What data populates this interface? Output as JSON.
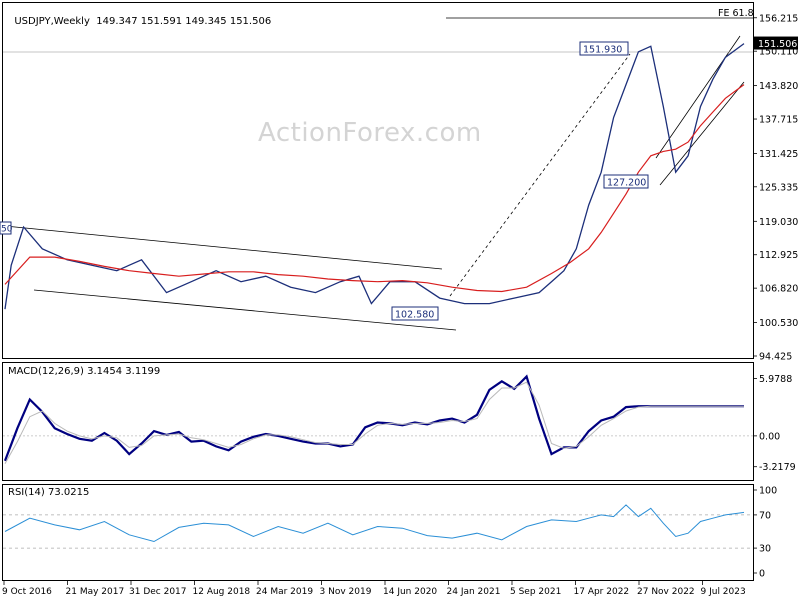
{
  "header": {
    "symbol": "USDJPY,Weekly",
    "ohlc": "149.347 151.591 149.345 151.506"
  },
  "watermark": "ActionForex.com",
  "macd_header": "MACD(12,26,9) 3.1454 3.1199",
  "rsi_header": "RSI(14) 73.0215",
  "colors": {
    "price": "#1c2f7a",
    "ma": "#d81e1e",
    "macd": "#000080",
    "signal": "#b9b9b9",
    "rsi": "#2b8fd6",
    "grid": "#c8c8c8",
    "label_border": "#1c2f7a"
  },
  "chart_data": {
    "type": "line",
    "price_panel": {
      "y_ticks": [
        "156.215",
        "150.110",
        "143.820",
        "137.715",
        "131.425",
        "125.335",
        "119.030",
        "112.925",
        "106.820",
        "100.530",
        "94.425"
      ],
      "ylim": [
        94.425,
        158
      ],
      "last_price": "151.506",
      "annotations": [
        {
          "text": "151.930",
          "value": 151.93
        },
        {
          "text": "127.200",
          "value": 127.2
        },
        {
          "text": "102.580",
          "value": 102.58
        },
        {
          "text": "FE 61.8",
          "value": 157.2
        }
      ],
      "series": [
        {
          "name": "USDJPY",
          "x": [
            0.0,
            0.5,
            1.5,
            3.0,
            5.0,
            7.0,
            9.0,
            11.0,
            13.0,
            15.0,
            17.0,
            19.0,
            21.0,
            23.0,
            25.0,
            27.0,
            28.5,
            29.5,
            31.0,
            33.0,
            35.0,
            37.0,
            39.0,
            41.0,
            43.0,
            44.0,
            45.0,
            46.0,
            47.0,
            48.0,
            49.0,
            50.0,
            51.0,
            52.0,
            53.0,
            54.0,
            55.0,
            56.0,
            57.0,
            58.0,
            59.5
          ],
          "values": [
            103,
            111,
            118,
            114,
            112,
            111,
            110,
            112,
            106,
            108,
            110,
            108,
            109,
            107,
            106,
            108,
            109,
            104,
            108,
            108,
            105,
            104,
            104,
            105,
            106,
            108,
            110,
            114,
            122,
            128,
            138,
            144,
            150,
            151,
            140,
            128,
            131,
            140,
            145,
            149,
            151.5
          ]
        },
        {
          "name": "MA",
          "x": [
            0.0,
            2.0,
            4.0,
            6.0,
            8.0,
            10.0,
            12.0,
            14.0,
            16.0,
            18.0,
            20.0,
            22.0,
            24.0,
            26.0,
            28.0,
            30.0,
            32.0,
            34.0,
            36.0,
            38.0,
            40.0,
            42.0,
            44.0,
            45.5,
            47.0,
            48.0,
            49.0,
            50.0,
            51.0,
            52.0,
            53.0,
            54.0,
            55.0,
            56.0,
            57.0,
            58.0,
            59.5
          ],
          "values": [
            107.5,
            112.5,
            112.5,
            111.7,
            110.8,
            110.0,
            109.5,
            109.0,
            109.4,
            109.8,
            109.8,
            109.3,
            109.0,
            108.5,
            108.2,
            108.0,
            108.2,
            107.8,
            107.0,
            106.4,
            106.2,
            107.0,
            109.5,
            111.5,
            114.0,
            117.0,
            120.5,
            124.0,
            128.0,
            131.0,
            131.8,
            132.2,
            133.5,
            136.5,
            139.0,
            141.5,
            144.0
          ]
        }
      ]
    },
    "macd_panel": {
      "y_ticks": [
        "5.9788",
        "0.00",
        "-3.2179"
      ],
      "ylim": [
        -4.5,
        7.5
      ],
      "series": [
        {
          "name": "MACD(12,26,9)",
          "x": [
            0,
            1,
            2,
            3,
            4,
            5,
            6,
            7,
            8,
            9,
            10,
            11,
            12,
            13,
            14,
            15,
            16,
            17,
            18,
            19,
            20,
            21,
            22,
            23,
            24,
            25,
            26,
            27,
            28,
            29,
            30,
            31,
            32,
            33,
            34,
            35,
            36,
            37,
            38,
            39,
            40,
            41,
            42,
            43,
            44,
            45,
            46,
            47,
            48,
            49,
            50,
            51,
            52,
            53,
            54,
            55,
            56,
            57,
            58,
            59,
            59.5
          ],
          "values": [
            -2.6,
            0.8,
            3.8,
            2.5,
            0.8,
            0.2,
            -0.3,
            -0.5,
            0.3,
            -0.5,
            -1.9,
            -0.8,
            0.5,
            0.1,
            0.4,
            -0.6,
            -0.5,
            -1.1,
            -1.5,
            -0.6,
            -0.1,
            0.2,
            0.0,
            -0.3,
            -0.6,
            -0.8,
            -0.8,
            -1.1,
            -0.9,
            0.9,
            1.4,
            1.3,
            1.1,
            1.4,
            1.2,
            1.6,
            1.8,
            1.4,
            2.2,
            4.8,
            5.7,
            4.9,
            6.2,
            1.8,
            -1.9,
            -1.2,
            -1.2,
            0.5,
            1.6,
            2.0,
            3.0,
            3.1,
            3.1,
            3.1,
            3.1,
            3.1,
            3.1,
            3.1,
            3.1,
            3.1,
            3.1
          ]
        },
        {
          "name": "Signal",
          "x": [
            0,
            1,
            2,
            3,
            4,
            5,
            6,
            7,
            8,
            9,
            10,
            11,
            12,
            13,
            14,
            15,
            16,
            17,
            18,
            19,
            20,
            21,
            22,
            23,
            24,
            25,
            26,
            27,
            28,
            29,
            30,
            31,
            32,
            33,
            34,
            35,
            36,
            37,
            38,
            39,
            40,
            41,
            42,
            43,
            44,
            45,
            46,
            47,
            48,
            49,
            50,
            51,
            52,
            53,
            54,
            55,
            56,
            57,
            58,
            59,
            59.5
          ],
          "values": [
            -2.9,
            -0.6,
            2.0,
            2.6,
            1.3,
            0.5,
            0.0,
            -0.3,
            0.0,
            -0.2,
            -1.2,
            -1.0,
            0.0,
            0.1,
            0.2,
            -0.2,
            -0.4,
            -0.8,
            -1.2,
            -0.9,
            -0.3,
            0.1,
            0.1,
            -0.1,
            -0.4,
            -0.7,
            -0.8,
            -0.9,
            -0.9,
            0.2,
            1.1,
            1.3,
            1.2,
            1.3,
            1.3,
            1.4,
            1.6,
            1.5,
            1.8,
            3.8,
            5.0,
            5.0,
            5.6,
            3.2,
            -0.8,
            -1.3,
            -1.1,
            -0.1,
            1.1,
            1.8,
            2.6,
            3.0,
            3.1,
            3.1,
            3.1,
            3.1,
            3.1,
            3.1,
            3.1,
            3.1,
            3.1
          ]
        }
      ]
    },
    "rsi_panel": {
      "y_ticks": [
        "100",
        "70",
        "30",
        "0"
      ],
      "ylim": [
        0,
        100
      ],
      "series": [
        {
          "name": "RSI(14)",
          "x": [
            0,
            2,
            4,
            6,
            8,
            10,
            12,
            14,
            16,
            18,
            20,
            22,
            24,
            26,
            28,
            30,
            32,
            34,
            36,
            38,
            40,
            42,
            44,
            46,
            47,
            48,
            49,
            50,
            51,
            52,
            53,
            54,
            55,
            56,
            57,
            58,
            59,
            59.5
          ],
          "values": [
            50,
            66,
            58,
            52,
            62,
            46,
            38,
            55,
            60,
            58,
            44,
            56,
            48,
            60,
            46,
            56,
            54,
            45,
            42,
            48,
            40,
            56,
            64,
            62,
            66,
            70,
            68,
            82,
            68,
            78,
            60,
            44,
            48,
            62,
            66,
            70,
            72,
            73
          ]
        }
      ]
    },
    "x_tick_labels": [
      "9 Oct 2016",
      "21 May 2017",
      "31 Dec 2017",
      "12 Aug 2018",
      "24 Mar 2019",
      "3 Nov 2019",
      "14 Jun 2020",
      "24 Jan 2021",
      "5 Sep 2021",
      "17 Apr 2022",
      "27 Nov 2022",
      "9 Jul 2023"
    ],
    "grid": false,
    "legend": "none"
  }
}
